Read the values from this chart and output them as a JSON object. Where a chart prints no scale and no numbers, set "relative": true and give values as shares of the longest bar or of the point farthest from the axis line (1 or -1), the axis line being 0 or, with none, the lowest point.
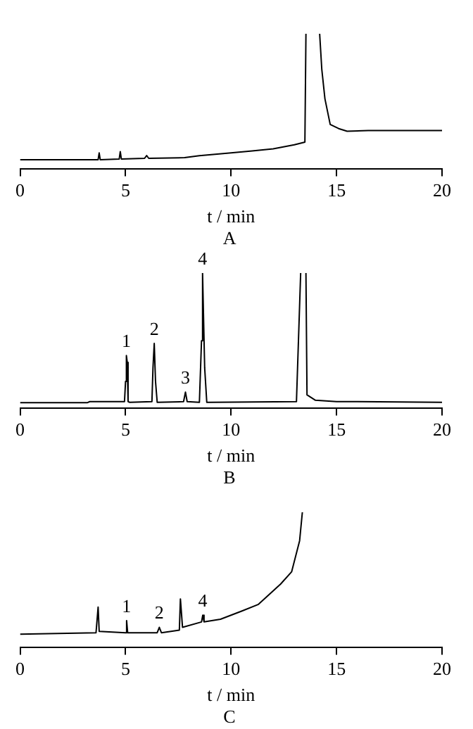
{
  "chart_data": [
    {
      "type": "line",
      "title": "A",
      "xlabel": "t / min",
      "color": "#000000",
      "relative": true,
      "grid": false,
      "legend": false,
      "marker": "none",
      "xlim": [
        0,
        20
      ],
      "xticks": [
        0,
        5,
        10,
        15,
        20
      ],
      "x": [
        0,
        1.7,
        3.7,
        3.75,
        3.8,
        4.7,
        4.75,
        4.8,
        5.9,
        6.0,
        6.1,
        7.8,
        8.5,
        10,
        11,
        12,
        13,
        13.5,
        13.55,
        13.9,
        14.2,
        14.3,
        14.45,
        14.7,
        15.1,
        15.5,
        16.5,
        20
      ],
      "values": [
        0.07,
        0.07,
        0.07,
        0.12,
        0.07,
        0.075,
        0.13,
        0.075,
        0.08,
        0.1,
        0.08,
        0.085,
        0.1,
        0.12,
        0.135,
        0.15,
        0.18,
        0.2,
        1,
        null,
        1,
        0.74,
        0.52,
        0.33,
        0.3,
        0.28,
        0.285,
        0.285
      ]
    },
    {
      "type": "line",
      "title": "B",
      "xlabel": "t / min",
      "color": "#000000",
      "relative": true,
      "grid": false,
      "legend": false,
      "marker": "none",
      "xlim": [
        0,
        20
      ],
      "xticks": [
        0,
        5,
        10,
        15,
        20
      ],
      "x": [
        0,
        3.2,
        3.3,
        4.95,
        5.0,
        5.04,
        5.08,
        5.12,
        5.2,
        6.25,
        6.3,
        6.36,
        6.42,
        6.5,
        7.75,
        7.84,
        7.92,
        8.5,
        8.6,
        8.65,
        8.75,
        8.85,
        9,
        13.1,
        13.3,
        13.4,
        13.55,
        13.6,
        14,
        15,
        16,
        20
      ],
      "values": [
        0.043,
        0.043,
        0.05,
        0.05,
        0.2,
        0.39,
        0.34,
        0.05,
        0.045,
        0.05,
        0.3,
        0.48,
        0.2,
        0.045,
        0.05,
        0.12,
        0.05,
        0.045,
        0.5,
        1,
        0.3,
        0.045,
        0.045,
        0.05,
        1,
        null,
        1,
        0.1,
        0.06,
        0.05,
        0.05,
        0.045
      ],
      "annotations": [
        {
          "text": "1",
          "x": 5.04,
          "y": 0.39
        },
        {
          "text": "2",
          "x": 6.36,
          "y": 0.48
        },
        {
          "text": "3",
          "x": 7.84,
          "y": 0.12
        },
        {
          "text": "4",
          "x": 8.65,
          "y": 1
        }
      ]
    },
    {
      "type": "line",
      "title": "C",
      "xlabel": "t / min",
      "color": "#000000",
      "relative": true,
      "grid": false,
      "legend": false,
      "marker": "none",
      "xlim": [
        0,
        20
      ],
      "xticks": [
        0,
        5,
        10,
        15,
        20
      ],
      "x": [
        0,
        3.6,
        3.65,
        3.7,
        3.75,
        5.0,
        5.05,
        5.1,
        6.5,
        6.6,
        6.7,
        7.55,
        7.6,
        7.7,
        8.6,
        8.66,
        8.72,
        9.5,
        10,
        10.5,
        11.3,
        12.35,
        12.87,
        13.25,
        13.38
      ],
      "values": [
        0.1,
        0.11,
        0.11,
        0.3,
        0.12,
        0.11,
        0.2,
        0.11,
        0.11,
        0.15,
        0.11,
        0.13,
        0.36,
        0.15,
        0.19,
        0.24,
        0.19,
        0.21,
        0.24,
        0.27,
        0.32,
        0.47,
        0.56,
        0.79,
        1
      ],
      "annotations": [
        {
          "text": "1",
          "x": 5.05,
          "y": 0.2
        },
        {
          "text": "2",
          "x": 6.6,
          "y": 0.15
        },
        {
          "text": "4",
          "x": 8.66,
          "y": 0.24
        }
      ]
    }
  ]
}
